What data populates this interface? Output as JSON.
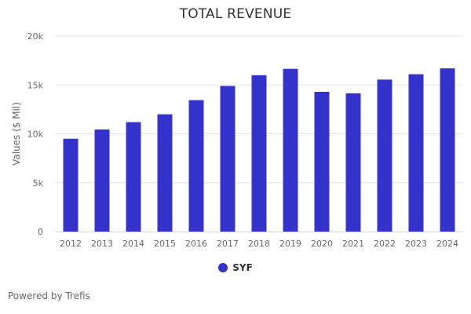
{
  "chart_data": {
    "type": "bar",
    "title": "TOTAL REVENUE",
    "ylabel": "Values ($ Mil)",
    "xlabel": "",
    "categories": [
      "2012",
      "2013",
      "2014",
      "2015",
      "2016",
      "2017",
      "2018",
      "2019",
      "2020",
      "2021",
      "2022",
      "2023",
      "2024"
    ],
    "series": [
      {
        "name": "SYF",
        "color": "#3333cc",
        "values": [
          9500,
          10450,
          11200,
          12000,
          13450,
          14900,
          16000,
          16650,
          14300,
          14150,
          15550,
          16100,
          16700
        ]
      }
    ],
    "ylim": [
      0,
      20000
    ],
    "yticks": [
      0,
      5000,
      10000,
      15000,
      20000
    ],
    "ytick_labels": [
      "0",
      "5k",
      "10k",
      "15k",
      "20k"
    ],
    "grid": true,
    "legend_position": "bottom-center"
  },
  "credit": "Powered by Trefis"
}
